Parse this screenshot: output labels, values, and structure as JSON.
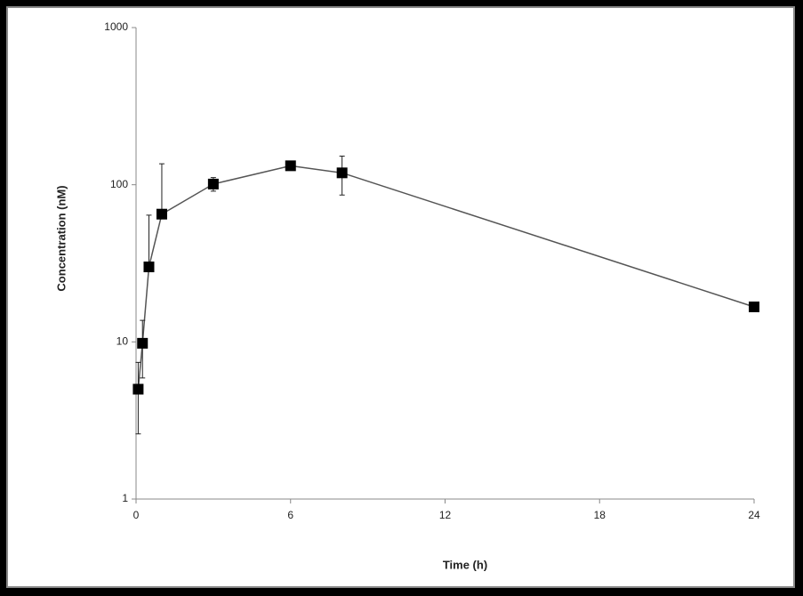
{
  "chart_data": {
    "type": "line",
    "x_label": "Time (h)",
    "y_label": "Concentration (nM)",
    "x": [
      0.083,
      0.25,
      0.5,
      1,
      3,
      6,
      8,
      24
    ],
    "series": [
      {
        "color": "#000000",
        "values": [
          5.0,
          9.8,
          30,
          65,
          101,
          132,
          119,
          16.7
        ],
        "errors": [
          2.4,
          3.9,
          34,
          71,
          10,
          5,
          33,
          0.5
        ]
      }
    ],
    "xlim": [
      0,
      24
    ],
    "xticks": [
      0,
      6,
      12,
      18,
      24
    ],
    "ylim": [
      1,
      1000
    ],
    "yticks": [
      1,
      10,
      100,
      1000
    ],
    "y_scale": "log"
  }
}
